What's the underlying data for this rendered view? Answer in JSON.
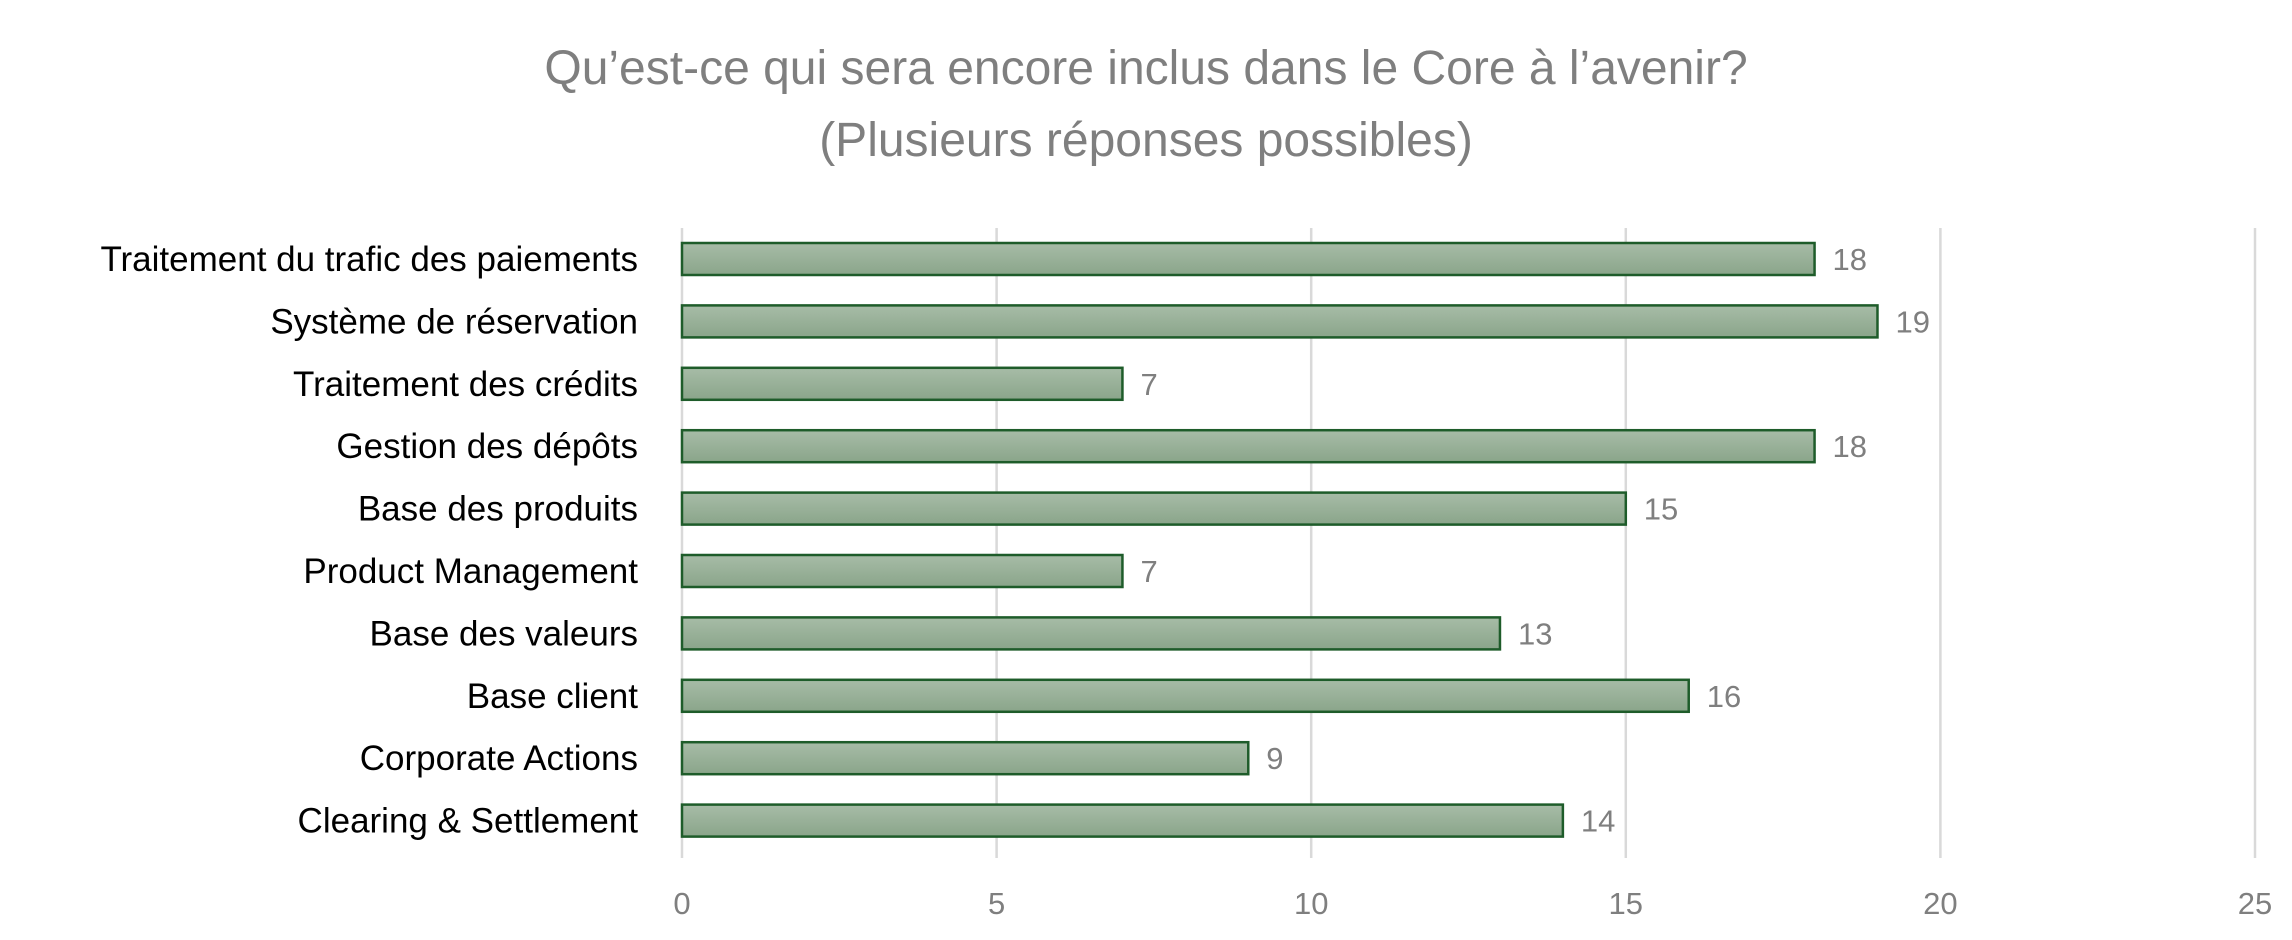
{
  "chart_data": {
    "type": "bar",
    "orientation": "horizontal",
    "title": "Qu’est-ce qui sera encore inclus dans le Core à l’avenir?",
    "subtitle": "(Plusieurs réponses possibles)",
    "categories": [
      "Traitement du trafic des paiements",
      "Système de réservation",
      "Traitement des crédits",
      "Gestion des dépôts",
      "Base des produits",
      "Product Management",
      "Base des valeurs",
      "Base client",
      "Corporate Actions",
      "Clearing & Settlement"
    ],
    "values": [
      18,
      19,
      7,
      18,
      15,
      7,
      13,
      16,
      9,
      14
    ],
    "xlim": [
      0,
      25
    ],
    "xticks": [
      "0",
      "5",
      "10",
      "15",
      "20",
      "25"
    ],
    "grid": true,
    "legend": "none",
    "data_labels": true,
    "colors": {
      "bar_fill_top": "#a7bca7",
      "bar_fill_bottom": "#8aa58a",
      "bar_stroke": "#1e5c2a",
      "gridline": "#d9d9d9",
      "text_muted": "#7f7f7f",
      "text_category": "#000000"
    }
  }
}
